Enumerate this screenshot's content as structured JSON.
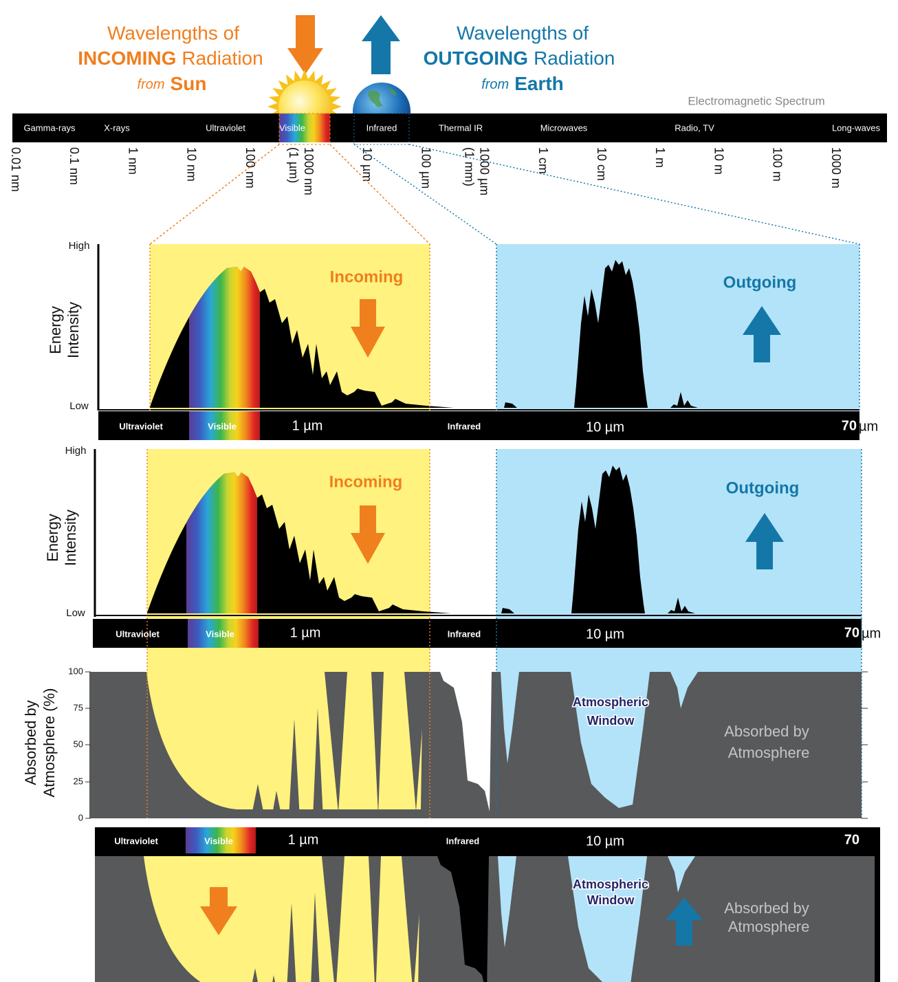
{
  "header": {
    "incoming": {
      "line1": "Wavelengths of",
      "emphasis": "INCOMING",
      "rest": "Radiation",
      "from": "from",
      "source": "Sun"
    },
    "outgoing": {
      "line1": "Wavelengths of",
      "emphasis": "OUTGOING",
      "rest": "Radiation",
      "from": "from",
      "source": "Earth"
    }
  },
  "spectrum": {
    "title": "Electromagnetic Spectrum",
    "bands": [
      "Gamma-rays",
      "X-rays",
      "Ultraviolet",
      "Visible",
      "Infrared",
      "Thermal IR",
      "Microwaves",
      "Radio, TV",
      "Long-waves"
    ],
    "scale": [
      [
        "0.01 nm"
      ],
      [
        "0.1 nm"
      ],
      [
        "1 nm"
      ],
      [
        "10 nm"
      ],
      [
        "100 nm"
      ],
      [
        "1000 nm",
        "(1 µm)"
      ],
      [
        "10 µm"
      ],
      [
        "100 µm"
      ],
      [
        "1000 µm",
        "(1 mm)"
      ],
      [
        "1 cm"
      ],
      [
        "10 cm"
      ],
      [
        "1 m"
      ],
      [
        "10 m"
      ],
      [
        "100 m"
      ],
      [
        "1000 m"
      ]
    ]
  },
  "panels": [
    {
      "high": "High",
      "low": "Low",
      "y_label": [
        "Energy",
        "Intensity"
      ],
      "incoming": "Incoming",
      "outgoing": "Outgoing",
      "axis": {
        "uv": "Ultraviolet",
        "visible": "Visible",
        "one": "1 µm",
        "infrared": "Infrared",
        "ten": "10 µm",
        "end": "70",
        "unit": "µm"
      }
    },
    {
      "high": "High",
      "low": "Low",
      "y_label": [
        "Energy",
        "Intensity"
      ],
      "incoming": "Incoming",
      "outgoing": "Outgoing",
      "axis": {
        "uv": "Ultraviolet",
        "visible": "Visible",
        "one": "1 µm",
        "infrared": "Infrared",
        "ten": "10 µm",
        "end": "70",
        "unit": "µm"
      }
    }
  ],
  "absorption": {
    "y_label": [
      "Absorbed by",
      "Atmosphere (%)"
    ],
    "yticks": [
      "100",
      "75",
      "50",
      "25",
      "0"
    ],
    "window": [
      "Atmospheric",
      "Window"
    ],
    "absorbed": [
      "Absorbed by",
      "Atmosphere"
    ]
  },
  "bottom": {
    "axis": {
      "uv": "Ultraviolet",
      "visible": "Visible",
      "one": "1 µm",
      "infrared": "Infrared",
      "ten": "10 µm",
      "end": "70"
    },
    "window": [
      "Atmospheric",
      "Window"
    ],
    "absorbed": [
      "Absorbed by",
      "Atmosphere"
    ]
  }
}
